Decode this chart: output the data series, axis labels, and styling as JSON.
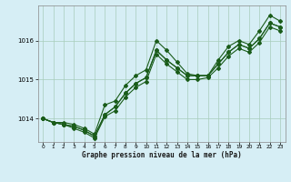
{
  "xlabel": "Graphe pression niveau de la mer (hPa)",
  "xlim": [
    -0.5,
    23.5
  ],
  "ylim": [
    1013.4,
    1016.9
  ],
  "yticks": [
    1014,
    1015,
    1016
  ],
  "xticks": [
    0,
    1,
    2,
    3,
    4,
    5,
    6,
    7,
    8,
    9,
    10,
    11,
    12,
    13,
    14,
    15,
    16,
    17,
    18,
    19,
    20,
    21,
    22,
    23
  ],
  "bg_color": "#d6eef5",
  "grid_color": "#a8ccbb",
  "line_color": "#1a5c1a",
  "series": [
    [
      1014.0,
      1013.9,
      1013.9,
      1013.85,
      1013.75,
      1013.6,
      1014.35,
      1014.45,
      1014.85,
      1015.1,
      1015.25,
      1016.0,
      1015.75,
      1015.45,
      1015.15,
      1015.1,
      1015.1,
      1015.5,
      1015.85,
      1016.0,
      1015.9,
      1016.25,
      1016.65,
      1016.5
    ],
    [
      1014.0,
      1013.9,
      1013.85,
      1013.8,
      1013.7,
      1013.55,
      1014.1,
      1014.3,
      1014.65,
      1014.9,
      1015.05,
      1015.75,
      1015.5,
      1015.3,
      1015.1,
      1015.1,
      1015.1,
      1015.4,
      1015.7,
      1015.9,
      1015.8,
      1016.05,
      1016.45,
      1016.35
    ],
    [
      1014.0,
      1013.9,
      1013.85,
      1013.8,
      1013.7,
      1013.55,
      1014.1,
      1014.3,
      1014.65,
      1014.9,
      1015.05,
      1015.75,
      1015.5,
      1015.3,
      1015.1,
      1015.1,
      1015.1,
      1015.4,
      1015.7,
      1015.9,
      1015.8,
      1016.05,
      1016.45,
      1016.35
    ],
    [
      1014.0,
      1013.9,
      1013.85,
      1013.75,
      1013.65,
      1013.5,
      1014.05,
      1014.2,
      1014.55,
      1014.8,
      1014.95,
      1015.65,
      1015.4,
      1015.2,
      1015.0,
      1015.0,
      1015.05,
      1015.3,
      1015.6,
      1015.8,
      1015.7,
      1015.95,
      1016.35,
      1016.25
    ]
  ],
  "marker": "D",
  "markersize": 2.0,
  "linewidth": 0.8
}
